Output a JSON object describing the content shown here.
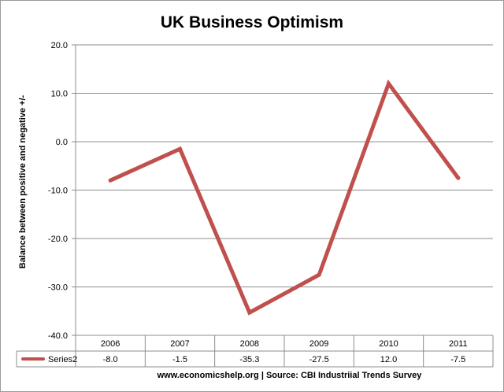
{
  "chart_data": {
    "type": "line",
    "title": "UK Business Optimism",
    "ylabel": "Balance between positive and negative +/-",
    "xlabel": "",
    "categories": [
      "2006",
      "2007",
      "2008",
      "2009",
      "2010",
      "2011"
    ],
    "series": [
      {
        "name": "Series2",
        "values": [
          -8.0,
          -1.5,
          -35.3,
          -27.5,
          12.0,
          -7.5
        ],
        "value_labels": [
          "-8.0",
          "-1.5",
          "-35.3",
          "-27.5",
          "12.0",
          "-7.5"
        ],
        "color": "#c0504d"
      }
    ],
    "ylim": [
      -40,
      20
    ],
    "y_ticks": [
      20,
      10,
      0,
      -10,
      -20,
      -30,
      -40
    ],
    "y_tick_labels": [
      "20.0",
      "10.0",
      "0.0",
      "-10.0",
      "-20.0",
      "-30.0",
      "-40.0"
    ],
    "grid": true,
    "legend": "data-table-below",
    "source_note": "www.economicshelp.org | Source: CBI Industriial Trends Survey"
  }
}
